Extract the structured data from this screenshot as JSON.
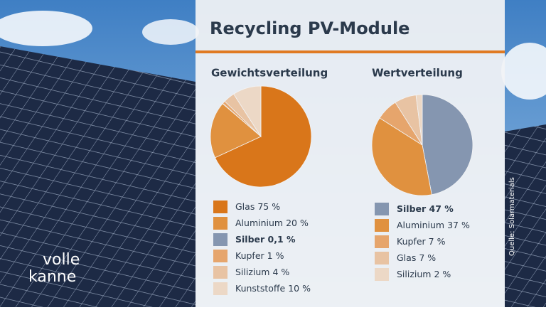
{
  "header": {
    "title": "Recycling PV-Module",
    "source": "Quelle: Solarmaterials",
    "logo": [
      "volle",
      "kanne"
    ]
  },
  "chart_data": [
    {
      "type": "pie",
      "title": "Gewichtsverteilung",
      "categories": [
        "Glas",
        "Aluminium",
        "Silber",
        "Kupfer",
        "Silizium",
        "Kunststoffe"
      ],
      "values": [
        75,
        20,
        0.1,
        1,
        4,
        10
      ],
      "value_labels": [
        "75 %",
        "20 %",
        "0,1 %",
        "1 %",
        "4 %",
        "10 %"
      ],
      "colors": [
        "#d9761a",
        "#e0913f",
        "#8596b0",
        "#e6a56c",
        "#e8c3a3",
        "#ecd8c6"
      ],
      "bold": [
        false,
        false,
        true,
        false,
        false,
        false
      ]
    },
    {
      "type": "pie",
      "title": "Wertverteilung",
      "categories": [
        "Silber",
        "Aluminium",
        "Kupfer",
        "Glas",
        "Silizium"
      ],
      "values": [
        47,
        37,
        7,
        7,
        2
      ],
      "value_labels": [
        "47 %",
        "37 %",
        "7 %",
        "7 %",
        "2 %"
      ],
      "colors": [
        "#8596b0",
        "#e0913f",
        "#e6a56c",
        "#e8c3a3",
        "#ecd8c6"
      ],
      "bold": [
        true,
        false,
        false,
        false,
        false
      ]
    }
  ]
}
